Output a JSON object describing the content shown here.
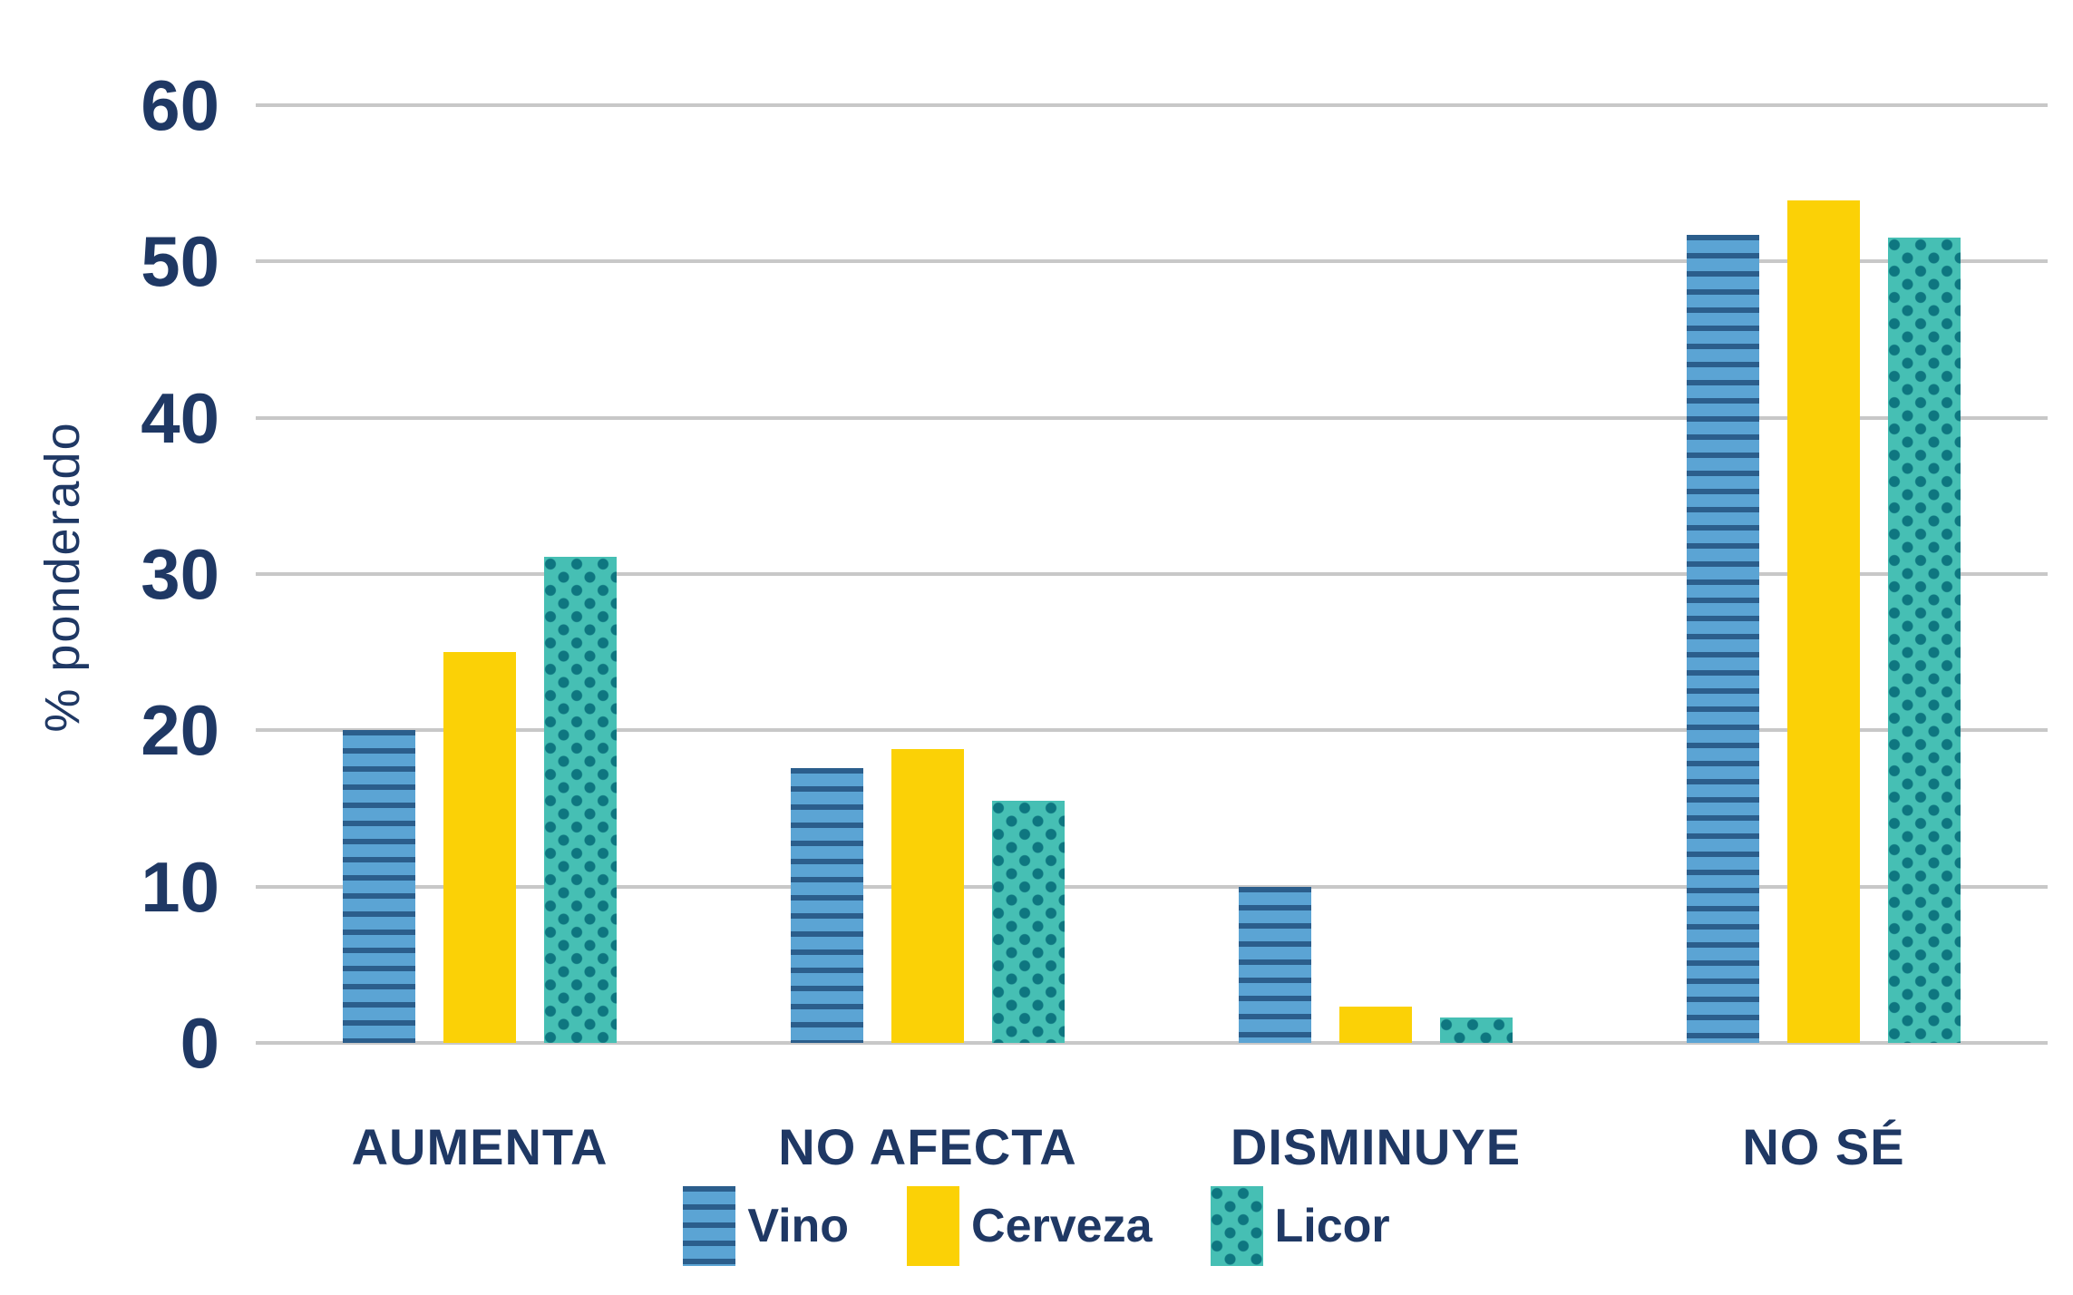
{
  "colors": {
    "text": "#1f3864",
    "gridline": "#c8c8c8",
    "background": "#ffffff"
  },
  "chart_data": {
    "type": "bar",
    "categories": [
      "AUMENTA",
      "NO AFECTA",
      "DISMINUYE",
      "NO SÉ"
    ],
    "series": [
      {
        "name": "Vino",
        "values": [
          20.0,
          17.6,
          10.0,
          51.7
        ],
        "color": "#5ba4d4",
        "pattern": "horizontal-stripes",
        "pattern_color": "#2b5e8c"
      },
      {
        "name": "Cerveza",
        "values": [
          25.0,
          18.8,
          2.3,
          53.9
        ],
        "color": "#fbd106",
        "pattern": "solid",
        "pattern_color": "#fbd106"
      },
      {
        "name": "Licor",
        "values": [
          31.1,
          15.5,
          1.6,
          51.5
        ],
        "color": "#46bfb4",
        "pattern": "dots",
        "pattern_color": "#0e7680"
      }
    ],
    "xlabel": "",
    "ylabel": "% ponderado",
    "ylim": [
      0,
      60
    ],
    "yticks": [
      0,
      10,
      20,
      30,
      40,
      50,
      60
    ],
    "grid": "horizontal",
    "legend_position": "bottom",
    "legend_labels": [
      "Vino",
      "Cerveza",
      "Licor"
    ]
  }
}
